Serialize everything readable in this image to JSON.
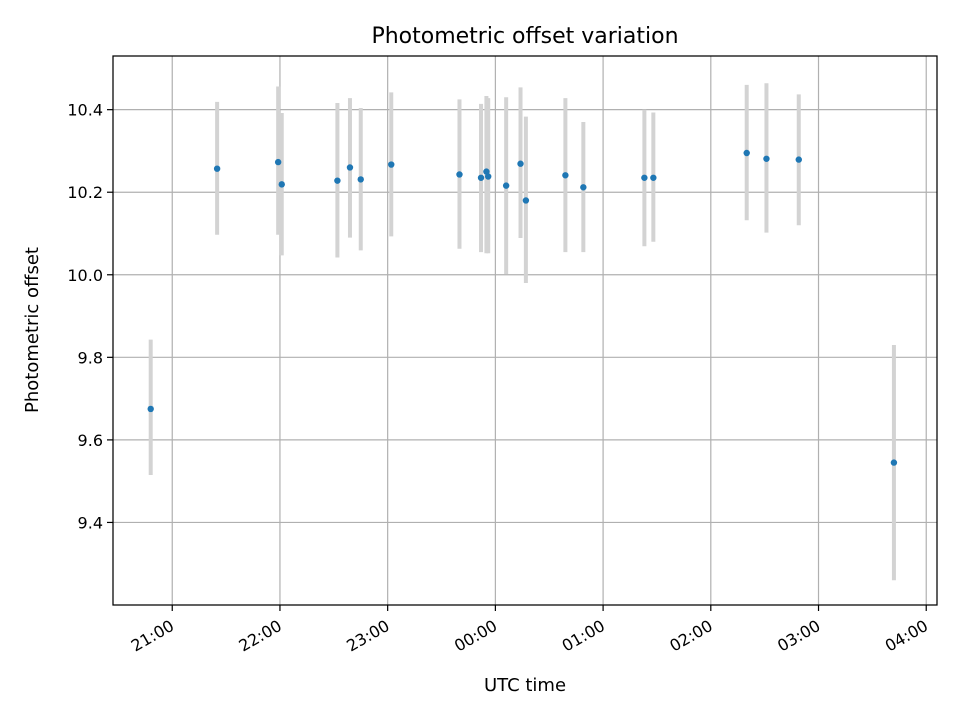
{
  "chart_data": {
    "type": "scatter",
    "title": "Photometric offset variation",
    "xlabel": "UTC time",
    "ylabel": "Photometric offset",
    "grid": true,
    "x_axis": {
      "kind": "time",
      "range": [
        "20:27",
        "04:06"
      ],
      "ticks": [
        "21:00",
        "22:00",
        "23:00",
        "00:00",
        "01:00",
        "02:00",
        "03:00",
        "04:00"
      ]
    },
    "y_axis": {
      "range": [
        9.2,
        10.53
      ],
      "ticks": [
        9.4,
        9.6,
        9.8,
        10.0,
        10.2,
        10.4
      ]
    },
    "series": [
      {
        "marker_color": "#1f77b4",
        "errorbar_color": "#d3d3d3",
        "points": [
          {
            "x": "20:48",
            "y": 9.675,
            "ylo": 9.515,
            "yhi": 9.843
          },
          {
            "x": "21:25",
            "y": 10.257,
            "ylo": 10.097,
            "yhi": 10.419
          },
          {
            "x": "21:59",
            "y": 10.273,
            "ylo": 10.097,
            "yhi": 10.456
          },
          {
            "x": "22:01",
            "y": 10.219,
            "ylo": 10.047,
            "yhi": 10.392
          },
          {
            "x": "22:32",
            "y": 10.228,
            "ylo": 10.042,
            "yhi": 10.416
          },
          {
            "x": "22:39",
            "y": 10.26,
            "ylo": 10.09,
            "yhi": 10.428
          },
          {
            "x": "22:45",
            "y": 10.231,
            "ylo": 10.059,
            "yhi": 10.404
          },
          {
            "x": "23:02",
            "y": 10.267,
            "ylo": 10.093,
            "yhi": 10.442
          },
          {
            "x": "23:40",
            "y": 10.243,
            "ylo": 10.063,
            "yhi": 10.425
          },
          {
            "x": "23:52",
            "y": 10.235,
            "ylo": 10.055,
            "yhi": 10.414
          },
          {
            "x": "23:55",
            "y": 10.25,
            "ylo": 10.052,
            "yhi": 10.433
          },
          {
            "x": "23:56",
            "y": 10.238,
            "ylo": 10.052,
            "yhi": 10.428
          },
          {
            "x": "00:06",
            "y": 10.216,
            "ylo": 10.002,
            "yhi": 10.43
          },
          {
            "x": "00:14",
            "y": 10.269,
            "ylo": 10.089,
            "yhi": 10.454
          },
          {
            "x": "00:17",
            "y": 10.18,
            "ylo": 9.98,
            "yhi": 10.383
          },
          {
            "x": "00:39",
            "y": 10.241,
            "ylo": 10.055,
            "yhi": 10.428
          },
          {
            "x": "00:49",
            "y": 10.212,
            "ylo": 10.055,
            "yhi": 10.37
          },
          {
            "x": "01:23",
            "y": 10.235,
            "ylo": 10.069,
            "yhi": 10.4
          },
          {
            "x": "01:28",
            "y": 10.235,
            "ylo": 10.08,
            "yhi": 10.393
          },
          {
            "x": "02:20",
            "y": 10.295,
            "ylo": 10.132,
            "yhi": 10.46
          },
          {
            "x": "02:31",
            "y": 10.281,
            "ylo": 10.102,
            "yhi": 10.464
          },
          {
            "x": "02:49",
            "y": 10.279,
            "ylo": 10.12,
            "yhi": 10.437
          },
          {
            "x": "03:42",
            "y": 9.545,
            "ylo": 9.26,
            "yhi": 9.83
          }
        ]
      }
    ]
  }
}
